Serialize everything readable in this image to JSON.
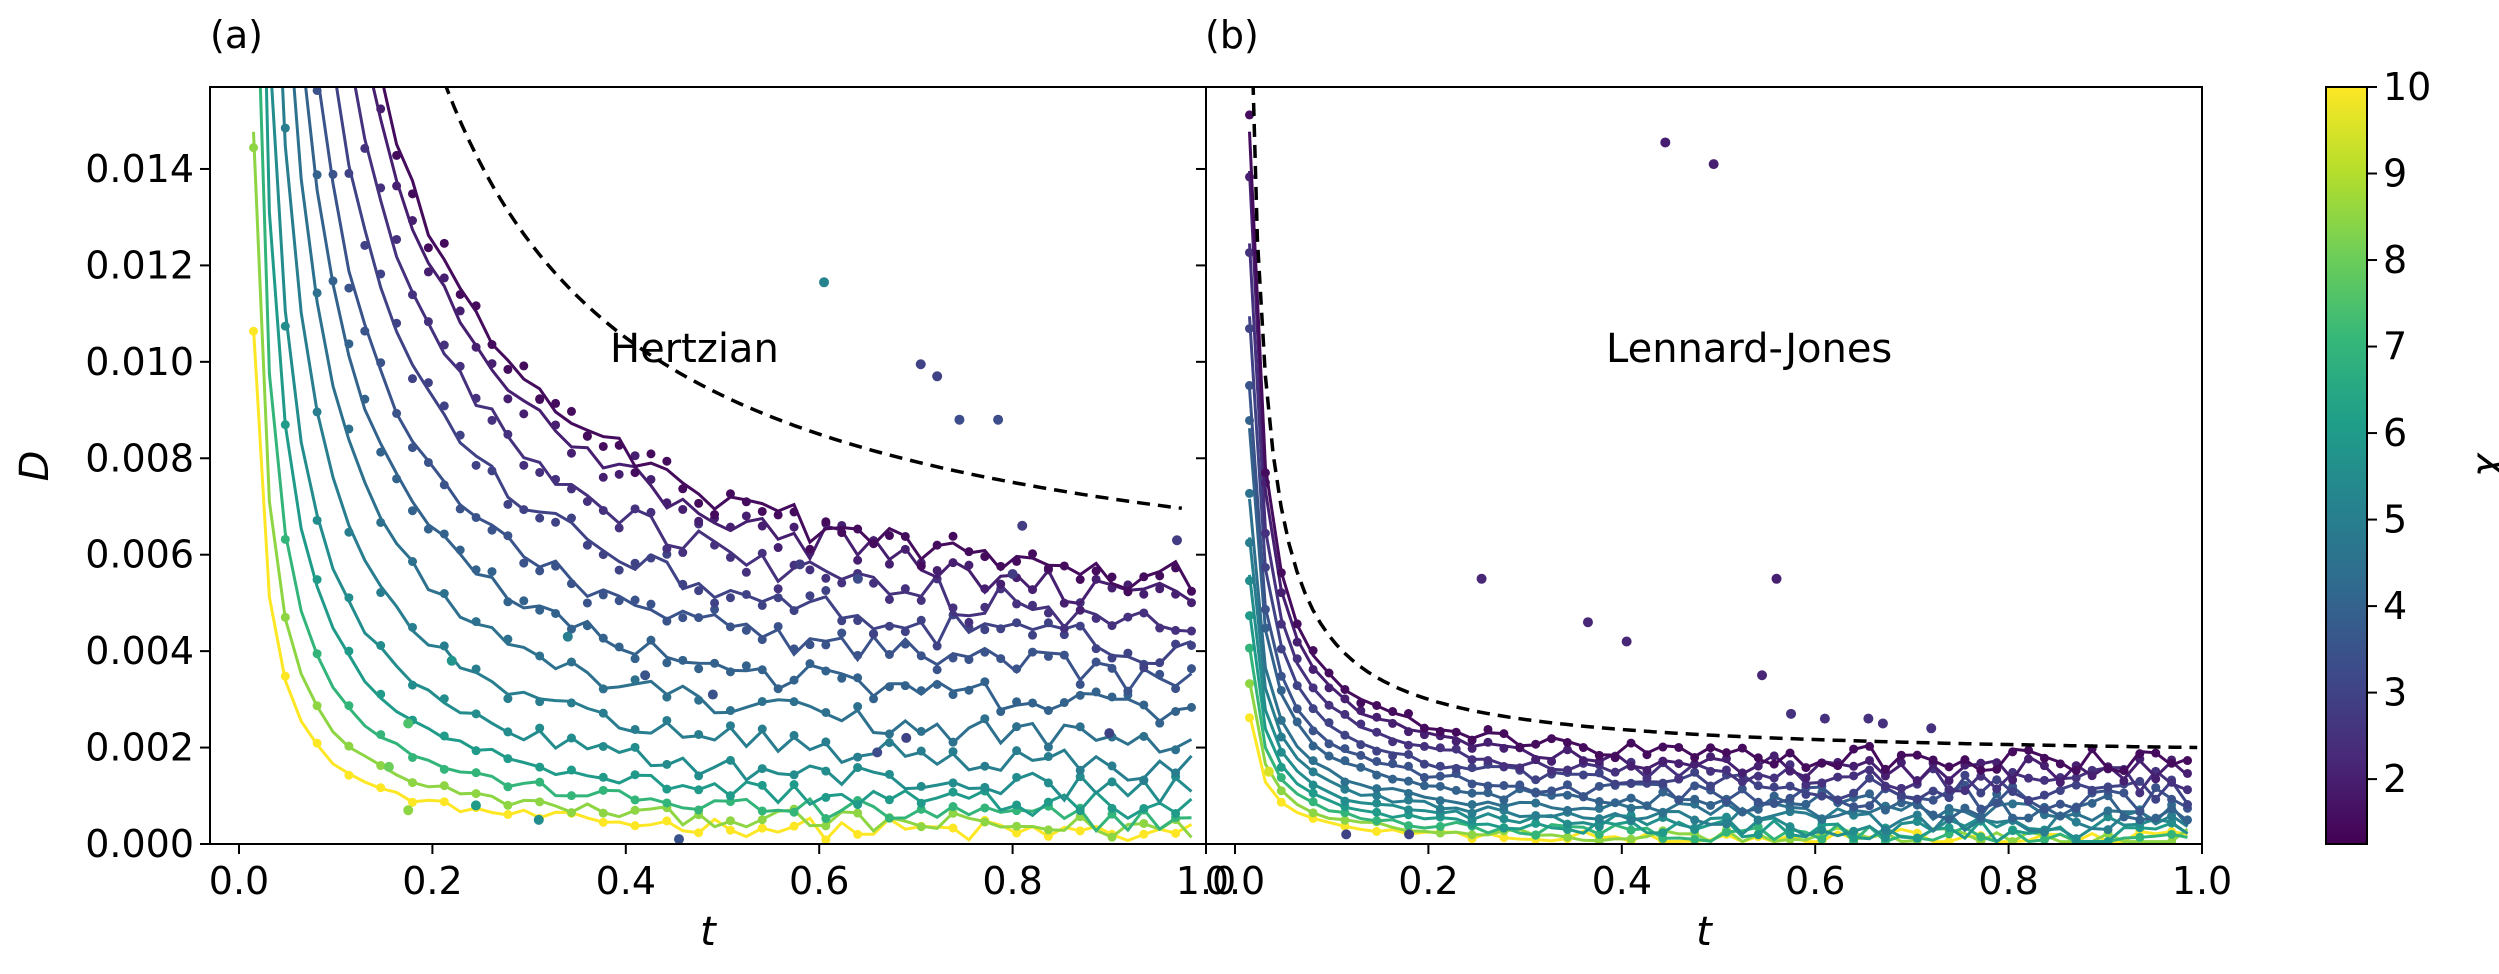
{
  "chart_data": [
    {
      "panel_label": "(a)",
      "type": "line",
      "annotation": "Hertzian",
      "xlabel": "t",
      "ylabel": "D",
      "xlim": [
        -0.03,
        1.0
      ],
      "ylim": [
        0.0,
        0.0157
      ],
      "xticks": [
        "0.0",
        "0.2",
        "0.4",
        "0.6",
        "0.8",
        "1.0"
      ],
      "yticks": [
        "0.000",
        "0.002",
        "0.004",
        "0.006",
        "0.008",
        "0.010",
        "0.012",
        "0.014"
      ],
      "reference_dashed": {
        "A": 0.0024,
        "B": 0.0045,
        "t_range": [
          0.015,
          0.975
        ]
      },
      "series": [
        {
          "chi": 1.5,
          "A": 0.0018,
          "B": 0.0036
        },
        {
          "chi": 2.0,
          "A": 0.0017,
          "B": 0.0034
        },
        {
          "chi": 2.5,
          "A": 0.0015,
          "B": 0.0031
        },
        {
          "chi": 3.0,
          "A": 0.0013,
          "B": 0.0027
        },
        {
          "chi": 3.5,
          "A": 0.0011,
          "B": 0.0023
        },
        {
          "chi": 4.0,
          "A": 0.00095,
          "B": 0.0018
        },
        {
          "chi": 4.5,
          "A": 0.0008,
          "B": 0.0013
        },
        {
          "chi": 5.0,
          "A": 0.00065,
          "B": 0.0009
        },
        {
          "chi": 5.5,
          "A": 0.0005,
          "B": 0.0006
        },
        {
          "chi": 6.0,
          "A": 0.0004,
          "B": 0.00035
        },
        {
          "chi": 7.0,
          "A": 0.0003,
          "B": 0.0002
        },
        {
          "chi": 8.5,
          "A": 0.00022,
          "B": 0.0001
        },
        {
          "chi": 10.0,
          "A": 0.00016,
          "B": 5e-05
        }
      ],
      "outliers": [
        {
          "t": 0.605,
          "D": 0.01165,
          "chi": 5.2
        },
        {
          "t": 0.705,
          "D": 0.00995,
          "chi": 3.0
        },
        {
          "t": 0.722,
          "D": 0.0097,
          "chi": 3.0
        },
        {
          "t": 0.745,
          "D": 0.0088,
          "chi": 3.3
        },
        {
          "t": 0.785,
          "D": 0.0088,
          "chi": 3.3
        },
        {
          "t": 0.81,
          "D": 0.0066,
          "chi": 2.8
        },
        {
          "t": 0.8,
          "D": 0.0056,
          "chi": 2.8
        },
        {
          "t": 0.97,
          "D": 0.0063,
          "chi": 2.8
        },
        {
          "t": 0.64,
          "D": 0.0055,
          "chi": 3.3
        },
        {
          "t": 0.58,
          "D": 0.0058,
          "chi": 2.8
        },
        {
          "t": 0.34,
          "D": 0.0043,
          "chi": 5.0
        },
        {
          "t": 0.22,
          "D": 0.0038,
          "chi": 5.8
        },
        {
          "t": 0.175,
          "D": 0.0025,
          "chi": 7.5
        },
        {
          "t": 0.155,
          "D": 0.0016,
          "chi": 8.0
        },
        {
          "t": 0.175,
          "D": 0.0007,
          "chi": 8.5
        },
        {
          "t": 0.31,
          "D": 0.0005,
          "chi": 5.5
        },
        {
          "t": 0.455,
          "D": 0.0001,
          "chi": 3.5
        },
        {
          "t": 0.245,
          "D": 0.0008,
          "chi": 6.0
        },
        {
          "t": 0.42,
          "D": 0.0035,
          "chi": 3.5
        },
        {
          "t": 0.49,
          "D": 0.0031,
          "chi": 3.5
        },
        {
          "t": 0.66,
          "D": 0.0019,
          "chi": 3.3
        },
        {
          "t": 0.69,
          "D": 0.0022,
          "chi": 3.0
        },
        {
          "t": 0.9,
          "D": 0.0023,
          "chi": 3.0
        }
      ]
    },
    {
      "panel_label": "(b)",
      "type": "line",
      "annotation": "Lennard-Jones",
      "xlabel": "t",
      "xlim": [
        -0.03,
        1.0
      ],
      "ylim": [
        0.0,
        0.0157
      ],
      "xticks": [
        "0.0",
        "0.2",
        "0.4",
        "0.6",
        "0.8",
        "1.0"
      ],
      "reference_dashed": {
        "A": 0.00025,
        "B": 0.00175,
        "t_range": [
          0.015,
          0.995
        ]
      },
      "series": [
        {
          "chi": 1.5,
          "A": 0.0002,
          "B": 0.00145
        },
        {
          "chi": 2.0,
          "A": 0.00019,
          "B": 0.0013
        },
        {
          "chi": 2.5,
          "A": 0.00017,
          "B": 0.00112
        },
        {
          "chi": 3.0,
          "A": 0.00015,
          "B": 0.00095
        },
        {
          "chi": 3.5,
          "A": 0.00013,
          "B": 0.00078
        },
        {
          "chi": 4.0,
          "A": 0.00012,
          "B": 0.00062
        },
        {
          "chi": 4.5,
          "A": 0.0001,
          "B": 0.00048
        },
        {
          "chi": 5.0,
          "A": 9e-05,
          "B": 0.00036
        },
        {
          "chi": 5.5,
          "A": 8e-05,
          "B": 0.00025
        },
        {
          "chi": 6.0,
          "A": 7e-05,
          "B": 0.00016
        },
        {
          "chi": 7.0,
          "A": 6e-05,
          "B": 0.0001
        },
        {
          "chi": 8.5,
          "A": 5e-05,
          "B": 5e-05
        },
        {
          "chi": 10.0,
          "A": 4e-05,
          "B": 2e-05
        }
      ],
      "outliers": [
        {
          "t": 0.445,
          "D": 0.01455,
          "chi": 2.0
        },
        {
          "t": 0.495,
          "D": 0.0141,
          "chi": 2.0
        },
        {
          "t": 0.255,
          "D": 0.0055,
          "chi": 2.2
        },
        {
          "t": 0.365,
          "D": 0.0046,
          "chi": 2.2
        },
        {
          "t": 0.405,
          "D": 0.0042,
          "chi": 2.2
        },
        {
          "t": 0.56,
          "D": 0.0055,
          "chi": 2.0
        },
        {
          "t": 0.545,
          "D": 0.0035,
          "chi": 2.2
        },
        {
          "t": 0.575,
          "D": 0.0027,
          "chi": 2.5
        },
        {
          "t": 0.61,
          "D": 0.0026,
          "chi": 2.5
        },
        {
          "t": 0.655,
          "D": 0.0026,
          "chi": 2.5
        },
        {
          "t": 0.67,
          "D": 0.0025,
          "chi": 2.5
        },
        {
          "t": 0.72,
          "D": 0.0024,
          "chi": 2.5
        },
        {
          "t": 0.035,
          "D": 0.0015,
          "chi": 9.5
        },
        {
          "t": 0.115,
          "D": 0.0002,
          "chi": 3.0
        },
        {
          "t": 0.18,
          "D": 0.0002,
          "chi": 3.0
        }
      ]
    }
  ],
  "colorbar": {
    "label": "χ",
    "range": [
      1.25,
      10.0
    ],
    "ticks": [
      "2",
      "3",
      "4",
      "5",
      "6",
      "7",
      "8",
      "9",
      "10"
    ],
    "colormap": [
      "#440154",
      "#482878",
      "#3e4989",
      "#31688e",
      "#26828e",
      "#1f9e89",
      "#35b779",
      "#6ece58",
      "#b5de2b",
      "#fde725"
    ]
  }
}
